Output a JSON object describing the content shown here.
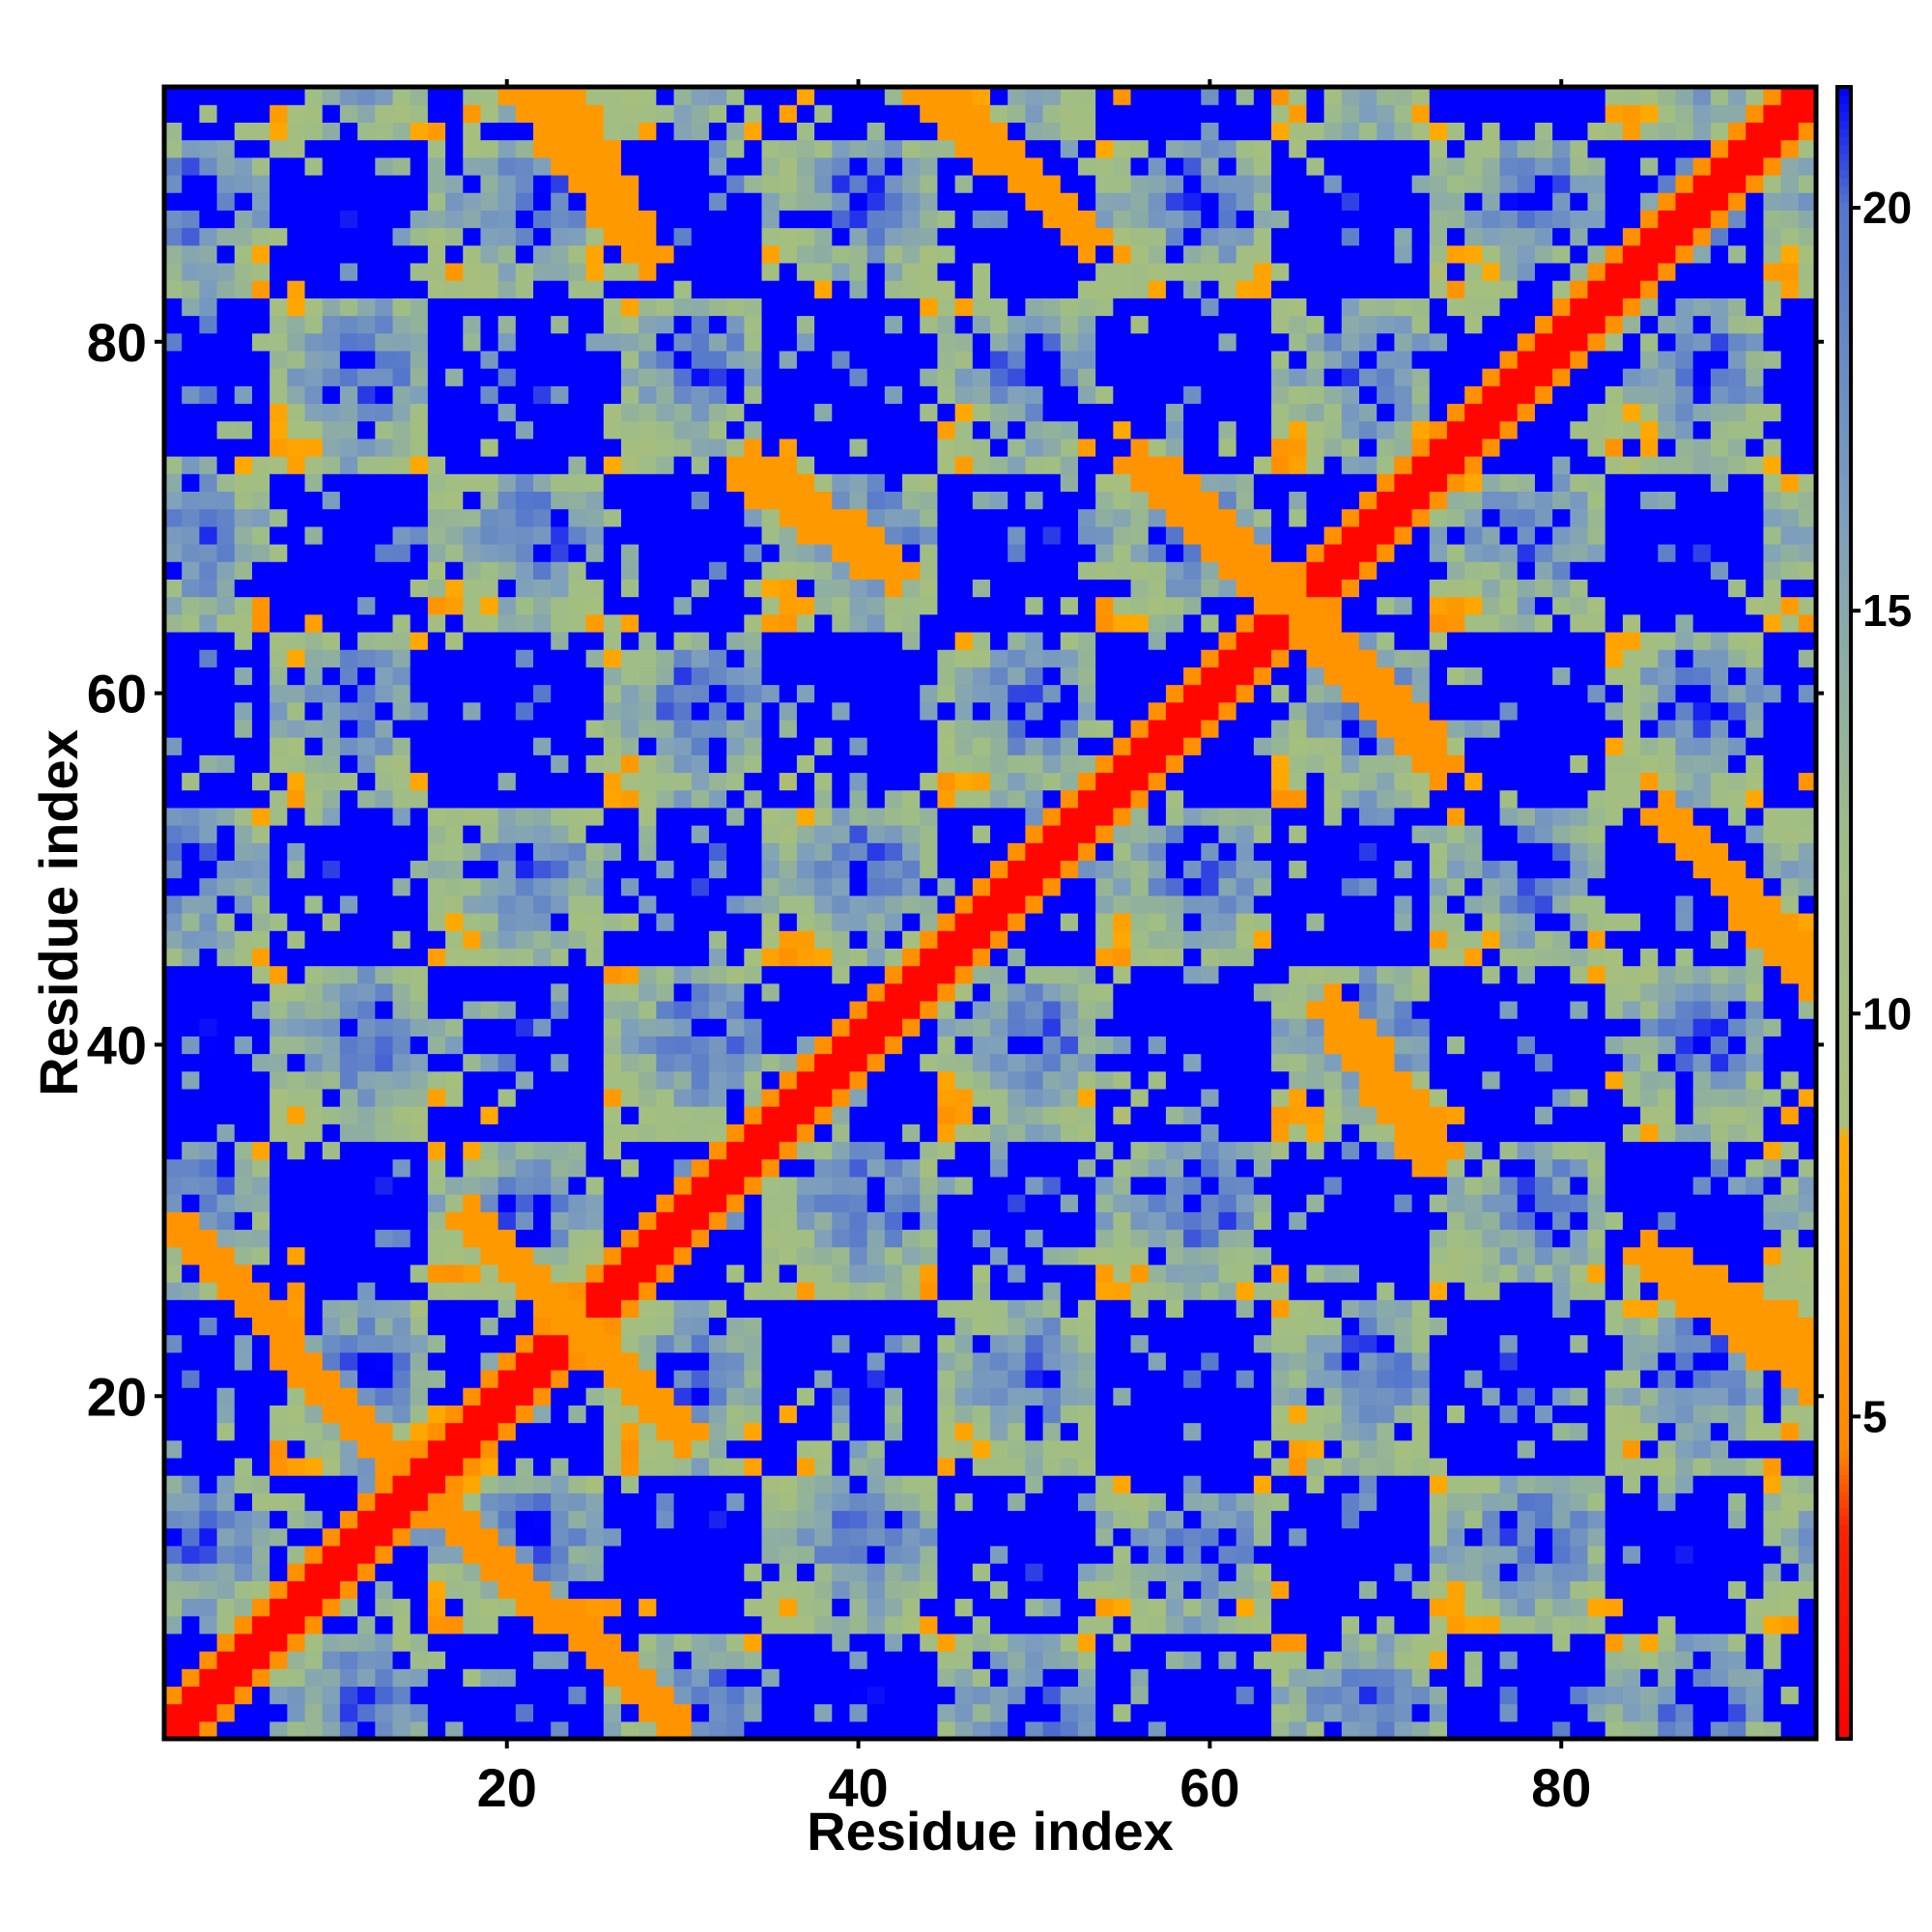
{
  "chart_data": {
    "type": "heatmap",
    "title": "",
    "xlabel": "Residue index",
    "ylabel": "Residue index",
    "n_residues": 94,
    "xlim": [
      1,
      94
    ],
    "ylim": [
      1,
      94
    ],
    "x_ticks": [
      20,
      40,
      60,
      80
    ],
    "y_ticks": [
      20,
      40,
      60,
      80
    ],
    "x_tick_labels": [
      "20",
      "40",
      "60",
      "80"
    ],
    "y_tick_labels": [
      "20",
      "40",
      "60",
      "80"
    ],
    "colorbar": {
      "range": [
        1,
        21.5
      ],
      "ticks": [
        5,
        10,
        15,
        20
      ],
      "tick_labels": [
        "5",
        "10",
        "15",
        "20"
      ],
      "stops": [
        {
          "value": 1.0,
          "color": "#ff0000"
        },
        {
          "value": 3.6,
          "color": "#ff2200"
        },
        {
          "value": 4.6,
          "color": "#ff8800"
        },
        {
          "value": 8.5,
          "color": "#ffaa00"
        },
        {
          "value": 8.6,
          "color": "#a7bf7d"
        },
        {
          "value": 12.0,
          "color": "#9fbd86"
        },
        {
          "value": 16.0,
          "color": "#7fa0bb"
        },
        {
          "value": 20.0,
          "color": "#5577cc"
        },
        {
          "value": 21.5,
          "color": "#0000ff"
        }
      ]
    },
    "matrix_description_note": "",
    "diagonal_value": 1.5,
    "helix_contact_bands": [
      {
        "a_start": 1,
        "a_end": 13,
        "b_start": 17,
        "b_end": 30,
        "value": 6.0
      },
      {
        "a_start": 18,
        "a_end": 30,
        "b_start": 18,
        "b_end": 30,
        "value": 6.5
      },
      {
        "a_start": 23,
        "a_end": 28,
        "b_start": 85,
        "b_end": 94,
        "value": 6.5
      },
      {
        "a_start": 44,
        "a_end": 53,
        "b_start": 86,
        "b_end": 95,
        "value": 6.5
      },
      {
        "a_start": 33,
        "a_end": 42,
        "b_start": 67,
        "b_end": 73,
        "value": 6.5
      },
      {
        "a_start": 57,
        "a_end": 66,
        "b_start": 64,
        "b_end": 73,
        "value": 6.0
      },
      {
        "a_start": 65,
        "a_end": 73,
        "b_start": 56,
        "b_end": 64,
        "value": 6.0
      },
      {
        "a_start": 67,
        "a_end": 73,
        "b_start": 34,
        "b_end": 42,
        "value": 6.5
      },
      {
        "a_start": 85,
        "a_end": 94,
        "b_start": 21,
        "b_end": 28,
        "value": 6.5
      },
      {
        "a_start": 86,
        "a_end": 94,
        "b_start": 44,
        "b_end": 53,
        "value": 6.5
      }
    ]
  }
}
